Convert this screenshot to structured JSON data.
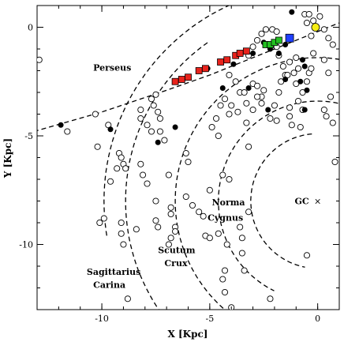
{
  "chart_data": {
    "type": "scatter",
    "xlabel": "X [Kpc]",
    "ylabel": "Y [Kpc]",
    "xlim": [
      -13,
      1
    ],
    "ylim": [
      -13,
      1
    ],
    "x_ticks": [
      {
        "value": -10,
        "label": "-10"
      },
      {
        "value": -5,
        "label": "-5"
      },
      {
        "value": 0,
        "label": "0"
      }
    ],
    "y_ticks": [
      {
        "value": 0,
        "label": "0"
      },
      {
        "value": -5,
        "label": "-5"
      },
      {
        "value": -10,
        "label": "-10"
      }
    ],
    "grid": false,
    "galactic_center": {
      "x": 0,
      "y": -8,
      "label": "GC",
      "marker": "×"
    },
    "arm_labels": [
      {
        "text": "Perseus",
        "x": -10.4,
        "y": -2.0
      },
      {
        "text": "Norma",
        "x": -4.9,
        "y": -8.2
      },
      {
        "text": "Cygnus",
        "x": -5.1,
        "y": -8.9
      },
      {
        "text": "Scutum",
        "x": -7.4,
        "y": -10.4
      },
      {
        "text": "Crux",
        "x": -7.1,
        "y": -11.0
      },
      {
        "text": "Sagittarius",
        "x": -10.7,
        "y": -11.4
      },
      {
        "text": "Carina",
        "x": -10.4,
        "y": -12.0
      }
    ],
    "arm_curves": [
      {
        "center": [
          0,
          -8
        ],
        "radius": 9.9,
        "theta_deg": [
          110,
          190
        ]
      },
      {
        "center": [
          0,
          -8
        ],
        "radius": 8.9,
        "theta_deg": [
          125,
          215
        ]
      },
      {
        "center": [
          0,
          -8
        ],
        "radius": 6.6,
        "theta_deg": [
          62,
          238
        ]
      },
      {
        "center": [
          0,
          -8
        ],
        "radius": 4.6,
        "theta_deg": [
          60,
          245
        ]
      },
      {
        "center": [
          0,
          -8
        ],
        "radius": 3.1,
        "theta_deg": [
          95,
          260
        ]
      },
      {
        "center": [
          0,
          -8
        ],
        "radius": 2.2,
        "theta_deg": [
          300,
          30
        ]
      }
    ],
    "perseus_line": [
      [
        -13.5,
        -4.9
      ],
      [
        -10,
        -3.9
      ],
      [
        -7,
        -2.9
      ],
      [
        -5,
        -2.2
      ],
      [
        -3,
        -1.4
      ],
      [
        -1,
        -0.6
      ],
      [
        1,
        0.2
      ]
    ],
    "colors": {
      "red": "#e8231c",
      "green": "#23c021",
      "blue": "#1f3fff",
      "yellow": "#f6ee15"
    },
    "series": [
      {
        "marker": "open-circle",
        "points": [
          [
            -12.9,
            -1.5
          ],
          [
            -11.6,
            -4.8
          ],
          [
            -10.3,
            -4.0
          ],
          [
            -10.2,
            -5.5
          ],
          [
            -9.6,
            -7.1
          ],
          [
            -9.9,
            -8.8
          ],
          [
            -10.1,
            -9.0
          ],
          [
            -9.7,
            -4.5
          ],
          [
            -9.2,
            -5.8
          ],
          [
            -9.1,
            -6.0
          ],
          [
            -9.0,
            -6.3
          ],
          [
            -8.9,
            -6.5
          ],
          [
            -9.3,
            -6.5
          ],
          [
            -9.1,
            -9.0
          ],
          [
            -9.1,
            -9.5
          ],
          [
            -9.0,
            -10.0
          ],
          [
            -8.8,
            -12.5
          ],
          [
            -8.4,
            -9.3
          ],
          [
            -8.2,
            -3.8
          ],
          [
            -8.2,
            -4.2
          ],
          [
            -8.2,
            -6.3
          ],
          [
            -8.1,
            -6.8
          ],
          [
            -7.9,
            -4.5
          ],
          [
            -7.7,
            -4.8
          ],
          [
            -7.9,
            -7.2
          ],
          [
            -7.5,
            -8.0
          ],
          [
            -7.5,
            -8.9
          ],
          [
            -7.4,
            -9.2
          ],
          [
            -7.3,
            -4.8
          ],
          [
            -7.6,
            -3.6
          ],
          [
            -7.7,
            -3.3
          ],
          [
            -7.5,
            -3.1
          ],
          [
            -7.4,
            -3.9
          ],
          [
            -7.3,
            -4.2
          ],
          [
            -7.1,
            -5.2
          ],
          [
            -6.9,
            -6.8
          ],
          [
            -6.8,
            -8.3
          ],
          [
            -6.8,
            -8.6
          ],
          [
            -6.6,
            -9.2
          ],
          [
            -6.6,
            -9.4
          ],
          [
            -6.8,
            -9.7
          ],
          [
            -6.9,
            -10.0
          ],
          [
            -6.1,
            -5.8
          ],
          [
            -6.0,
            -6.2
          ],
          [
            -6.1,
            -7.8
          ],
          [
            -5.8,
            -8.2
          ],
          [
            -5.5,
            -8.5
          ],
          [
            -5.3,
            -8.7
          ],
          [
            -5.2,
            -9.6
          ],
          [
            -5.0,
            -9.7
          ],
          [
            -4.6,
            -9.5
          ],
          [
            -4.9,
            -4.6
          ],
          [
            -4.7,
            -4.2
          ],
          [
            -4.6,
            -5.0
          ],
          [
            -4.5,
            -3.6
          ],
          [
            -4.3,
            -3.3
          ],
          [
            -4.5,
            -1.6
          ],
          [
            -4.1,
            -2.2
          ],
          [
            -4.0,
            -3.6
          ],
          [
            -4.1,
            -4.0
          ],
          [
            -3.8,
            -2.5
          ],
          [
            -3.7,
            -3.9
          ],
          [
            -3.6,
            -3.0
          ],
          [
            -3.4,
            -3.0
          ],
          [
            -3.3,
            -3.5
          ],
          [
            -3.3,
            -4.4
          ],
          [
            -3.2,
            -5.5
          ],
          [
            -3.0,
            -3.8
          ],
          [
            -3.0,
            -2.6
          ],
          [
            -2.8,
            -2.7
          ],
          [
            -2.5,
            -2.9
          ],
          [
            -2.6,
            -3.2
          ],
          [
            -2.6,
            -3.5
          ],
          [
            -2.8,
            -3.2
          ],
          [
            -3.6,
            -9.2
          ],
          [
            -3.5,
            -9.7
          ],
          [
            -3.4,
            -11.2
          ],
          [
            -3.5,
            -10.4
          ],
          [
            -4.2,
            -10.0
          ],
          [
            -4.4,
            -11.6
          ],
          [
            -4.3,
            -11.2
          ],
          [
            -4.3,
            -12.2
          ],
          [
            -4.0,
            -12.9
          ],
          [
            -4.1,
            -7.0
          ],
          [
            -4.4,
            -6.8
          ],
          [
            -3.2,
            -1.3
          ],
          [
            -3.0,
            -0.9
          ],
          [
            -2.8,
            -0.6
          ],
          [
            -2.6,
            -0.3
          ],
          [
            -2.4,
            -0.1
          ],
          [
            -2.1,
            -0.1
          ],
          [
            -1.9,
            -0.2
          ],
          [
            -1.9,
            -0.9
          ],
          [
            -1.8,
            -1.3
          ],
          [
            -1.6,
            -1.8
          ],
          [
            -1.5,
            -2.2
          ],
          [
            -1.7,
            -2.5
          ],
          [
            -1.8,
            -3.0
          ],
          [
            -1.3,
            -1.6
          ],
          [
            -1.4,
            -2.2
          ],
          [
            -1.1,
            -2.1
          ],
          [
            -1.0,
            -1.4
          ],
          [
            -0.9,
            -1.9
          ],
          [
            -1.0,
            -2.6
          ],
          [
            -0.9,
            -3.4
          ],
          [
            -0.7,
            -3.0
          ],
          [
            -0.5,
            -2.5
          ],
          [
            -0.4,
            -2.1
          ],
          [
            -0.3,
            -1.9
          ],
          [
            -0.2,
            -1.2
          ],
          [
            -0.3,
            -0.4
          ],
          [
            -0.6,
            0.6
          ],
          [
            -0.5,
            0.2
          ],
          [
            -0.4,
            0.6
          ],
          [
            -0.2,
            0.3
          ],
          [
            0.1,
            0.5
          ],
          [
            0.3,
            -0.1
          ],
          [
            0.5,
            -0.5
          ],
          [
            0.7,
            -0.8
          ],
          [
            0.3,
            -1.5
          ],
          [
            0.5,
            -2.1
          ],
          [
            0.6,
            -3.2
          ],
          [
            0.3,
            -3.8
          ],
          [
            0.4,
            -4.1
          ],
          [
            0.7,
            -4.4
          ],
          [
            -1.3,
            -4.1
          ],
          [
            -1.2,
            -4.5
          ],
          [
            -0.8,
            -4.6
          ],
          [
            -2.2,
            -4.2
          ],
          [
            -1.9,
            -4.3
          ],
          [
            -2.0,
            -3.6
          ],
          [
            -1.3,
            -3.7
          ],
          [
            -0.7,
            -3.8
          ],
          [
            0.8,
            -6.2
          ],
          [
            -0.5,
            -10.5
          ],
          [
            -2.2,
            -12.5
          ],
          [
            -3.2,
            -8.5
          ],
          [
            -5.0,
            -7.5
          ]
        ]
      },
      {
        "marker": "filled-circle",
        "points": [
          [
            -11.9,
            -4.5
          ],
          [
            -9.6,
            -4.7
          ],
          [
            -7.4,
            -5.3
          ],
          [
            -6.6,
            -4.6
          ],
          [
            -5.1,
            -1.9
          ],
          [
            -4.4,
            -2.8
          ],
          [
            -3.9,
            -1.7
          ],
          [
            -3.0,
            -1.2
          ],
          [
            -3.2,
            -2.8
          ],
          [
            -2.5,
            -0.7
          ],
          [
            -2.2,
            -1.0
          ],
          [
            -1.8,
            -1.2
          ],
          [
            -1.5,
            -0.8
          ],
          [
            -0.7,
            -1.5
          ],
          [
            -0.6,
            -1.8
          ],
          [
            -0.8,
            -2.5
          ],
          [
            -0.5,
            -2.9
          ],
          [
            -0.6,
            -3.8
          ],
          [
            -1.5,
            -2.4
          ],
          [
            -2.3,
            -3.8
          ],
          [
            -1.2,
            0.7
          ]
        ]
      },
      {
        "marker": "red-square",
        "points": [
          [
            -6.6,
            -2.5
          ],
          [
            -6.3,
            -2.4
          ],
          [
            -6.0,
            -2.3
          ],
          [
            -5.5,
            -2.0
          ],
          [
            -5.2,
            -1.9
          ],
          [
            -4.5,
            -1.6
          ],
          [
            -4.2,
            -1.5
          ],
          [
            -3.8,
            -1.3
          ],
          [
            -3.6,
            -1.2
          ],
          [
            -3.3,
            -1.1
          ]
        ]
      },
      {
        "marker": "green-square",
        "points": [
          [
            -2.4,
            -0.8
          ],
          [
            -2.2,
            -0.8
          ],
          [
            -2.0,
            -0.7
          ],
          [
            -1.8,
            -0.6
          ]
        ]
      },
      {
        "marker": "blue-square",
        "points": [
          [
            -1.3,
            -0.5
          ]
        ]
      },
      {
        "marker": "yellow-circle",
        "points": [
          [
            -0.1,
            0.0
          ]
        ]
      }
    ]
  }
}
